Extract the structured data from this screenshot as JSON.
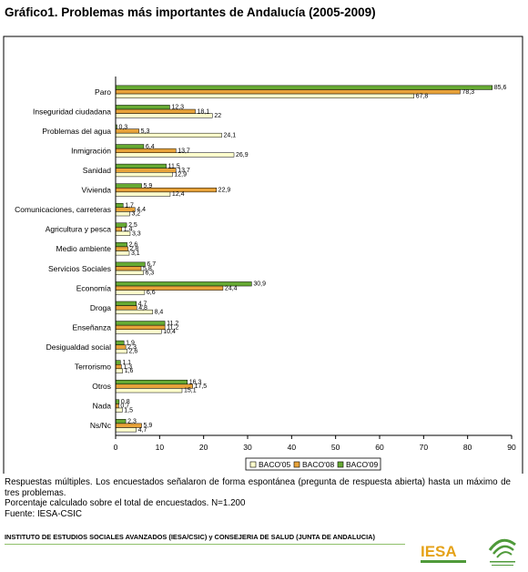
{
  "header": {
    "title": "Gráfico1. Problemas más importantes de Andalucía (2005-2009)"
  },
  "chart_data": {
    "type": "bar",
    "orientation": "horizontal",
    "title": "Gráfico1. Problemas más importantes de Andalucía (2005-2009)",
    "xlabel": "",
    "ylabel": "",
    "xlim": [
      0,
      90
    ],
    "xticks": [
      "0",
      "10",
      "20",
      "30",
      "40",
      "50",
      "60",
      "70",
      "80",
      "90"
    ],
    "grid": false,
    "legend_position": "bottom",
    "categories": [
      "Paro",
      "Inseguridad ciudadana",
      "Problemas del agua",
      "Inmigración",
      "Sanidad",
      "Vivienda",
      "Comunicaciones, carreteras",
      "Agricultura y pesca",
      "Medio ambiente",
      "Servicios Sociales",
      "Economía",
      "Droga",
      "Enseñanza",
      "Desigualdad social",
      "Terrorismo",
      "Otros",
      "Nada",
      "Ns/Nc"
    ],
    "series": [
      {
        "name": "BACO'05",
        "color": "#ffffcc",
        "values": [
          67.8,
          22,
          24.1,
          26.9,
          12.9,
          12.4,
          3.2,
          3.3,
          3.1,
          6.3,
          6.6,
          8.4,
          10.4,
          2.6,
          1.6,
          15.1,
          1.5,
          4.7
        ],
        "labels": [
          "67,8",
          "22",
          "24,1",
          "26,9",
          "12,9",
          "12,4",
          "3,2",
          "3,3",
          "3,1",
          "6,3",
          "6,6",
          "8,4",
          "10,4",
          "2,6",
          "1,6",
          "15,1",
          "1,5",
          "4,7"
        ]
      },
      {
        "name": "BACO'08",
        "color": "#e8a33a",
        "values": [
          78.3,
          18.1,
          5.3,
          13.7,
          13.7,
          22.9,
          4.4,
          1.4,
          2.8,
          5.8,
          24.4,
          4.8,
          11.2,
          2.3,
          1.3,
          17.5,
          0.7,
          5.9
        ],
        "labels": [
          "78,3",
          "18,1",
          "5,3",
          "13,7",
          "13,7",
          "22,9",
          "4,4",
          "1,4",
          "2,8",
          "5,8",
          "24,4",
          "4,8",
          "11,2",
          "2,3",
          "1,3",
          "17,5",
          "0,7",
          "5,9"
        ]
      },
      {
        "name": "BACO'09",
        "color": "#66aa33",
        "values": [
          85.6,
          12.3,
          0.3,
          6.4,
          11.5,
          5.9,
          1.7,
          2.5,
          2.6,
          6.7,
          30.9,
          4.7,
          11.2,
          1.9,
          1.1,
          16.3,
          0.8,
          2.3
        ],
        "labels": [
          "85,6",
          "12,3",
          "0,3",
          "6,4",
          "11,5",
          "5,9",
          "1,7",
          "2,5",
          "2,6",
          "6,7",
          "30,9",
          "4,7",
          "11,2",
          "1,9",
          "1,1",
          "16,3",
          "0,8",
          "2,3"
        ]
      }
    ]
  },
  "notes": {
    "line1": "Respuestas múltiples. Los encuestados señalaron de forma espontánea (pregunta de respuesta abierta) hasta un máximo de tres problemas.",
    "line2": "Porcentaje calculado sobre el total de encuestados. N=1.200",
    "line3": "Fuente: IESA-CSIC"
  },
  "footer": {
    "institute": "INSTITUTO DE ESTUDIOS SOCIALES AVANZADOS (IESA/CSIC) y CONSEJERIA DE SALUD (JUNTA DE ANDALUCIA)",
    "logo_text": "IESA",
    "accent_orange": "#e5a219",
    "accent_green": "#4f9a3a"
  }
}
